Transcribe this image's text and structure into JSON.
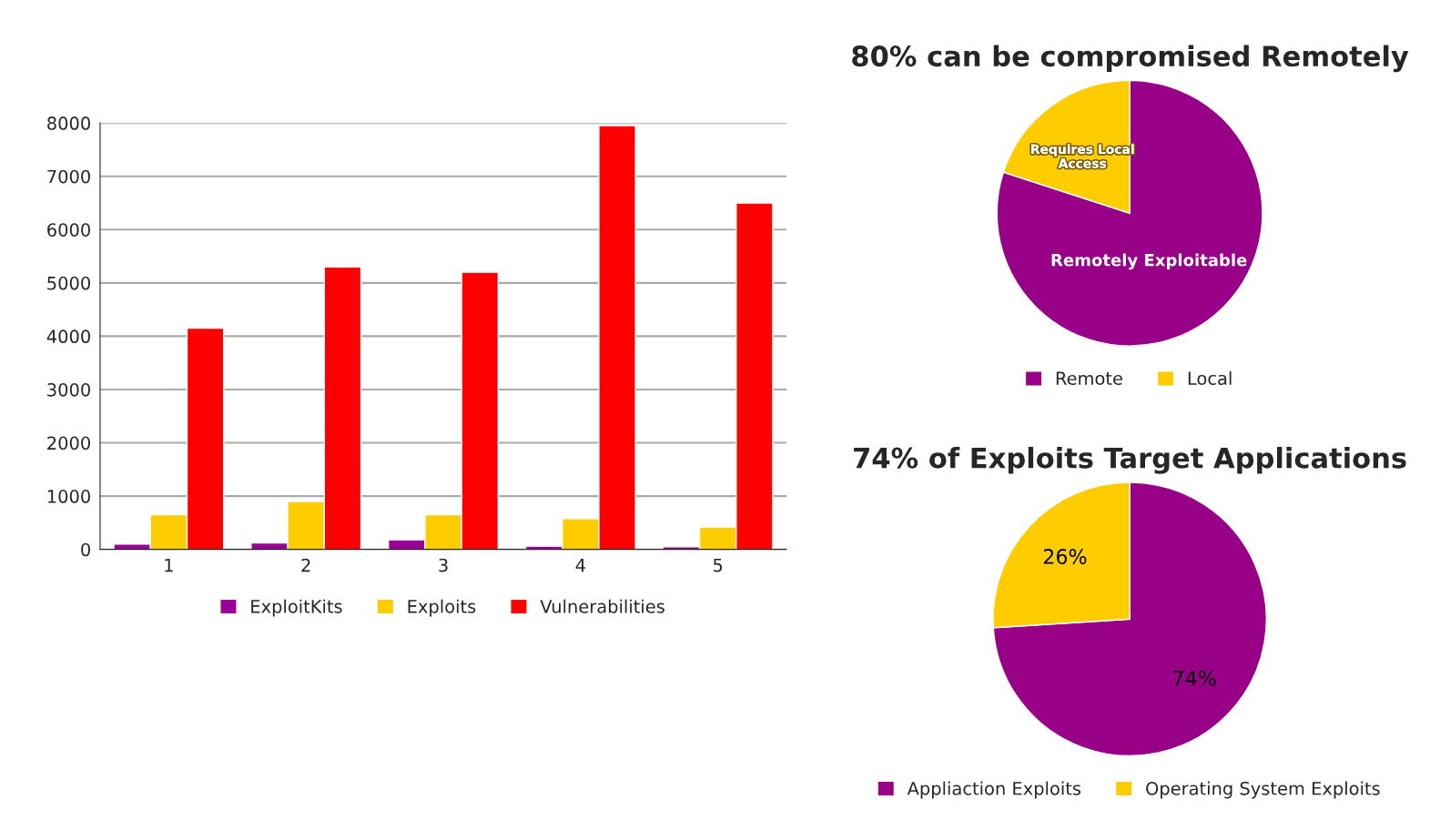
{
  "chart_data": [
    {
      "type": "bar",
      "categories": [
        "1",
        "2",
        "3",
        "4",
        "5"
      ],
      "series": [
        {
          "name": "ExploitKits",
          "color": "#990099",
          "values": [
            100,
            120,
            180,
            60,
            50
          ]
        },
        {
          "name": "Exploits",
          "color": "#ffcc00",
          "values": [
            650,
            900,
            650,
            580,
            420
          ]
        },
        {
          "name": "Vulnerabilities",
          "color": "#ff0000",
          "values": [
            4150,
            5300,
            5200,
            7950,
            6500
          ]
        }
      ],
      "ylim": [
        0,
        8000
      ],
      "yticks": [
        0,
        1000,
        2000,
        3000,
        4000,
        5000,
        6000,
        7000,
        8000
      ],
      "grid": "y",
      "legend": "bottom"
    },
    {
      "type": "pie",
      "title": "80% can be compromised Remotely",
      "categories": [
        "Remote",
        "Local"
      ],
      "values": [
        80,
        20
      ],
      "colors": [
        "#990088",
        "#ffcc00"
      ],
      "annotations": [
        "Remotely Exploitable",
        "Requires Local\nAccess"
      ],
      "legend": "bottom"
    },
    {
      "type": "pie",
      "title": "74% of Exploits Target Applications",
      "categories": [
        "Appliaction Exploits",
        "Operating System Exploits"
      ],
      "values": [
        74,
        26
      ],
      "colors": [
        "#990088",
        "#ffcc00"
      ],
      "value_labels": [
        "74%",
        "26%"
      ],
      "legend": "bottom"
    }
  ]
}
